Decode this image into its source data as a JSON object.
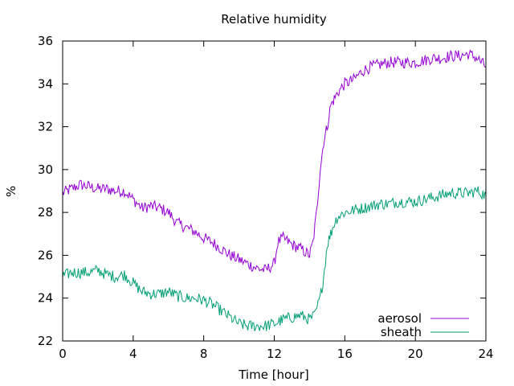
{
  "chart_data": {
    "type": "line",
    "title": "Relative humidity",
    "xlabel": "Time [hour]",
    "ylabel": "%",
    "xlim": [
      0,
      24
    ],
    "ylim": [
      22,
      36
    ],
    "xticks": [
      0,
      4,
      8,
      12,
      16,
      20,
      24
    ],
    "yticks": [
      22,
      24,
      26,
      28,
      30,
      32,
      34,
      36
    ],
    "grid": false,
    "legend_position": "bottom-right",
    "series": [
      {
        "name": "aerosol",
        "color": "#9400d3",
        "x": [
          0,
          0.5,
          1,
          1.5,
          2,
          2.5,
          3,
          3.5,
          4,
          4.5,
          5,
          5.5,
          6,
          6.5,
          7,
          7.5,
          8,
          8.5,
          9,
          9.5,
          10,
          10.5,
          11,
          11.5,
          12,
          12.2,
          12.5,
          13,
          13.5,
          14,
          14.2,
          14.4,
          14.6,
          14.8,
          15,
          15.2,
          15.4,
          15.6,
          16,
          16.5,
          17,
          17.5,
          18,
          18.5,
          19,
          19.5,
          20,
          20.5,
          21,
          21.5,
          22,
          22.5,
          23,
          23.5,
          24
        ],
        "y": [
          28.9,
          29.1,
          29.3,
          29.2,
          29.1,
          29.1,
          29.0,
          29.0,
          28.6,
          28.2,
          28.3,
          28.2,
          28.0,
          27.5,
          27.3,
          27.1,
          26.8,
          26.6,
          26.3,
          26.0,
          25.8,
          25.6,
          25.4,
          25.3,
          25.6,
          26.6,
          26.8,
          26.5,
          26.3,
          26.0,
          26.6,
          28.0,
          30.0,
          31.3,
          32.0,
          33.0,
          33.3,
          33.6,
          34.0,
          34.2,
          34.6,
          34.8,
          34.9,
          35.0,
          35.0,
          35.0,
          35.0,
          35.1,
          35.2,
          35.2,
          35.3,
          35.3,
          35.4,
          35.2,
          34.8
        ]
      },
      {
        "name": "sheath",
        "color": "#009e73",
        "x": [
          0,
          0.5,
          1,
          1.5,
          2,
          2.5,
          3,
          3.5,
          4,
          4.5,
          5,
          5.5,
          6,
          6.5,
          7,
          7.5,
          8,
          8.5,
          9,
          9.5,
          10,
          10.5,
          11,
          11.5,
          12,
          12.5,
          13,
          13.5,
          14,
          14.3,
          14.6,
          14.8,
          15,
          15.2,
          15.4,
          15.6,
          16,
          16.5,
          17,
          17.5,
          18,
          18.5,
          19,
          19.5,
          20,
          20.5,
          21,
          21.5,
          22,
          22.5,
          23,
          23.5,
          24
        ],
        "y": [
          25.0,
          25.2,
          25.2,
          25.2,
          25.3,
          25.1,
          25.0,
          25.1,
          24.7,
          24.3,
          24.2,
          24.2,
          24.3,
          24.1,
          24.0,
          24.0,
          23.9,
          23.7,
          23.4,
          23.1,
          22.8,
          22.7,
          22.7,
          22.7,
          22.8,
          23.0,
          23.1,
          23.2,
          23.0,
          23.2,
          24.0,
          25.0,
          26.5,
          27.0,
          27.5,
          27.8,
          28.0,
          28.1,
          28.2,
          28.3,
          28.4,
          28.4,
          28.5,
          28.5,
          28.5,
          28.6,
          28.7,
          28.8,
          28.9,
          28.9,
          28.9,
          29.0,
          28.8
        ]
      }
    ]
  }
}
